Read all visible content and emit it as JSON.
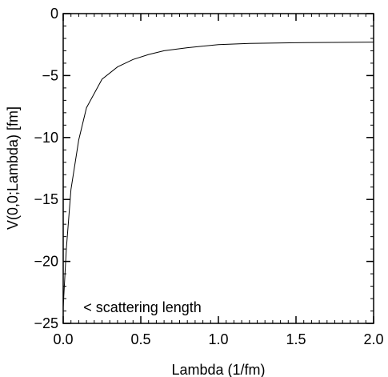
{
  "chart_data": {
    "type": "line",
    "title": "",
    "xlabel": "Lambda  (1/fm)",
    "ylabel": "V(0,0;Lambda)  [fm]",
    "xlim": [
      0.0,
      2.0
    ],
    "ylim": [
      -25,
      0
    ],
    "x_major_ticks": [
      0.0,
      0.5,
      1.0,
      1.5,
      2.0
    ],
    "x_tick_labels": [
      "0.0",
      "0.5",
      "1.0",
      "1.5",
      "2.0"
    ],
    "y_major_ticks": [
      0,
      -5,
      -10,
      -15,
      -20,
      -25
    ],
    "y_tick_labels": [
      "0",
      "−5",
      "−10",
      "−15",
      "−20",
      "−25"
    ],
    "grid": false,
    "series": [
      {
        "color": "#000000",
        "x": [
          0.0,
          0.02,
          0.05,
          0.1,
          0.15,
          0.25,
          0.35,
          0.45,
          0.55,
          0.65,
          0.8,
          1.0,
          1.2,
          1.5,
          2.0
        ],
        "y": [
          -23.7,
          -19.0,
          -14.2,
          -10.2,
          -7.6,
          -5.3,
          -4.3,
          -3.7,
          -3.3,
          -3.0,
          -2.75,
          -2.5,
          -2.4,
          -2.35,
          -2.3
        ]
      }
    ],
    "annotations": [
      {
        "text": "<  scattering  length",
        "x": 0.13,
        "y": -23.7
      }
    ]
  }
}
